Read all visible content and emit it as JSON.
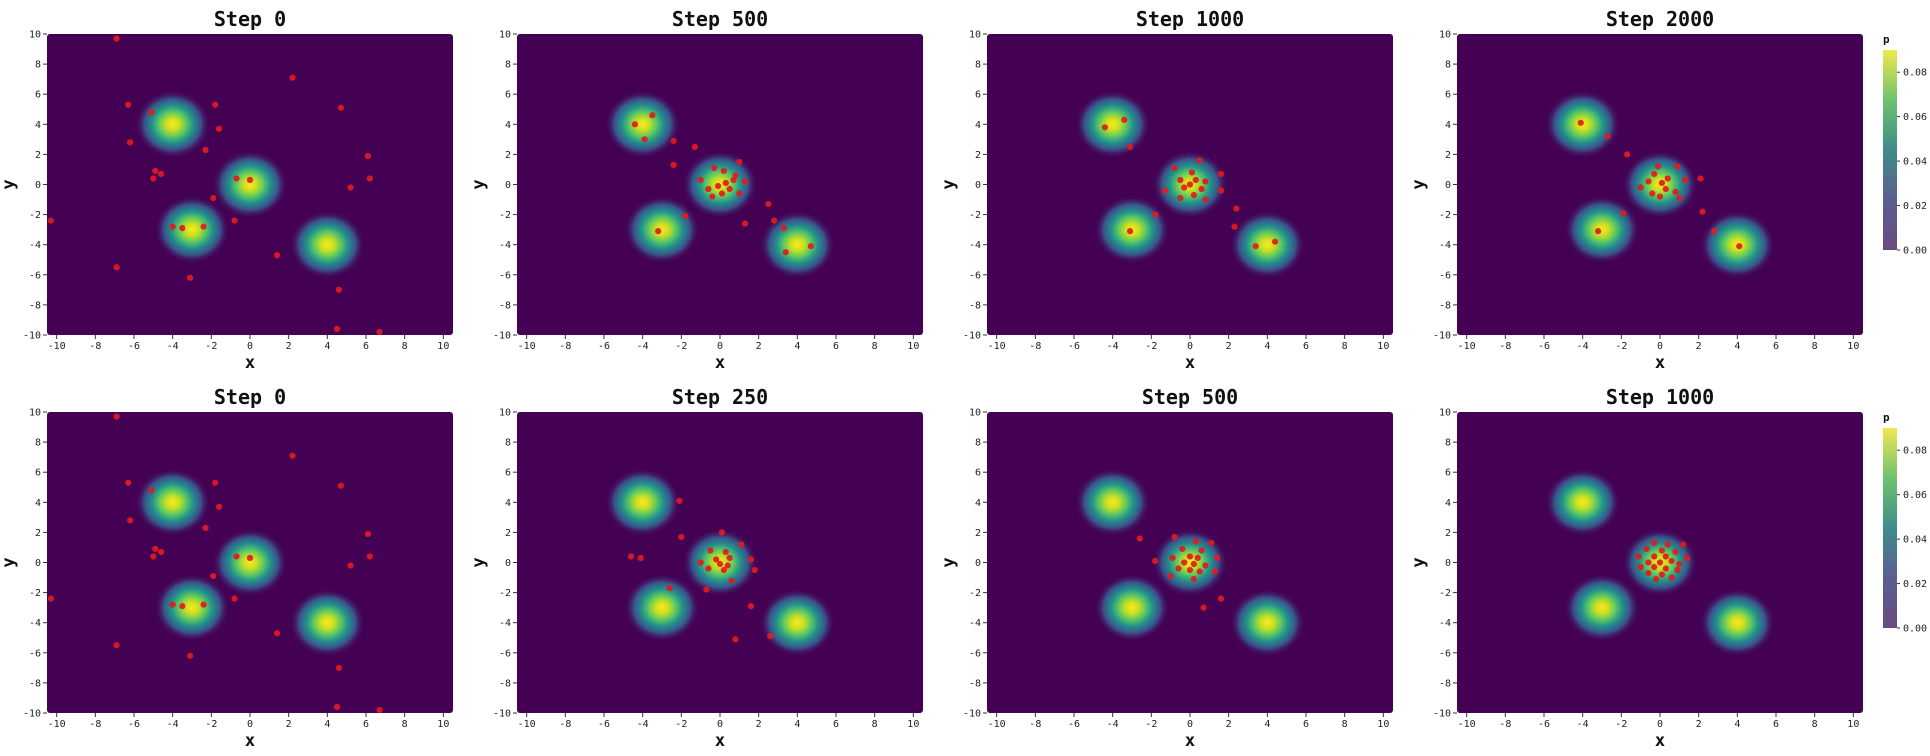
{
  "chart_data": {
    "type": "heatmap",
    "density": {
      "description_free": true,
      "components": [
        {
          "mean": [
            -4,
            4
          ],
          "sigma": 0.75
        },
        {
          "mean": [
            0,
            0
          ],
          "sigma": 0.75
        },
        {
          "mean": [
            -3,
            -3
          ],
          "sigma": 0.75
        },
        {
          "mean": [
            4,
            -4
          ],
          "sigma": 0.75
        }
      ]
    },
    "colorbar": {
      "title": "p",
      "ticks": [
        "0.00",
        "0.02",
        "0.04",
        "0.06",
        "0.08"
      ],
      "range": [
        0,
        0.09
      ]
    },
    "xlim": [
      -10.5,
      10.5
    ],
    "ylim": [
      -10,
      10
    ],
    "xticks": [
      "-10",
      "-8",
      "-6",
      "-4",
      "-2",
      "0",
      "2",
      "4",
      "6",
      "8",
      "10"
    ],
    "yticks": [
      "10",
      "8",
      "6",
      "4",
      "2",
      "0",
      "-2",
      "-4",
      "-6",
      "-8",
      "-10"
    ],
    "xlabel": "x",
    "ylabel": "y",
    "panels": [
      {
        "title": "Step 0",
        "points": [
          [
            -6.9,
            9.7
          ],
          [
            2.2,
            7.1
          ],
          [
            -6.3,
            5.3
          ],
          [
            -1.8,
            5.3
          ],
          [
            -5.1,
            4.8
          ],
          [
            4.7,
            5.1
          ],
          [
            -1.6,
            3.7
          ],
          [
            -6.2,
            2.8
          ],
          [
            -2.3,
            2.3
          ],
          [
            6.1,
            1.9
          ],
          [
            -4.9,
            0.9
          ],
          [
            -4.6,
            0.7
          ],
          [
            -5.0,
            0.4
          ],
          [
            -0.7,
            0.4
          ],
          [
            0.0,
            0.3
          ],
          [
            6.2,
            0.4
          ],
          [
            5.2,
            -0.2
          ],
          [
            -1.9,
            -0.9
          ],
          [
            -10.3,
            -2.4
          ],
          [
            -10.7,
            -2.5
          ],
          [
            -0.8,
            -2.4
          ],
          [
            -4.0,
            -2.8
          ],
          [
            -3.5,
            -2.9
          ],
          [
            -2.4,
            -2.8
          ],
          [
            1.4,
            -4.7
          ],
          [
            -6.9,
            -5.5
          ],
          [
            -3.1,
            -6.2
          ],
          [
            4.6,
            -7.0
          ],
          [
            4.5,
            -9.6
          ],
          [
            6.7,
            -9.8
          ]
        ]
      },
      {
        "title": "Step 500",
        "points": [
          [
            -3.5,
            4.6
          ],
          [
            -4.4,
            4.0
          ],
          [
            -3.9,
            3.0
          ],
          [
            -2.4,
            2.9
          ],
          [
            -1.3,
            2.5
          ],
          [
            -2.4,
            1.3
          ],
          [
            -0.3,
            1.1
          ],
          [
            1.0,
            1.5
          ],
          [
            0.2,
            0.9
          ],
          [
            0.8,
            0.6
          ],
          [
            -1.0,
            0.3
          ],
          [
            0.3,
            0.1
          ],
          [
            -0.1,
            -0.1
          ],
          [
            0.7,
            0.3
          ],
          [
            1.3,
            0.2
          ],
          [
            0.5,
            -0.3
          ],
          [
            -0.6,
            -0.3
          ],
          [
            0.1,
            -0.6
          ],
          [
            -0.4,
            -0.8
          ],
          [
            1.0,
            -0.6
          ],
          [
            2.5,
            -1.3
          ],
          [
            -1.8,
            -2.1
          ],
          [
            2.8,
            -2.4
          ],
          [
            1.3,
            -2.6
          ],
          [
            -3.2,
            -3.1
          ],
          [
            3.3,
            -2.9
          ],
          [
            3.4,
            -4.5
          ],
          [
            4.7,
            -4.1
          ]
        ]
      },
      {
        "title": "Step 1000",
        "points": [
          [
            -3.4,
            4.3
          ],
          [
            -4.4,
            3.8
          ],
          [
            -3.1,
            2.5
          ],
          [
            0.5,
            1.6
          ],
          [
            -0.8,
            1.1
          ],
          [
            0.1,
            0.8
          ],
          [
            1.6,
            0.7
          ],
          [
            -0.5,
            0.3
          ],
          [
            0.3,
            0.3
          ],
          [
            0.8,
            0.2
          ],
          [
            0.0,
            0.0
          ],
          [
            -0.3,
            -0.2
          ],
          [
            0.6,
            -0.3
          ],
          [
            -1.3,
            -0.4
          ],
          [
            1.6,
            -0.4
          ],
          [
            0.2,
            -0.7
          ],
          [
            -0.5,
            -0.9
          ],
          [
            0.8,
            -1.0
          ],
          [
            2.4,
            -1.6
          ],
          [
            -1.8,
            -2.0
          ],
          [
            -3.1,
            -3.1
          ],
          [
            2.3,
            -2.8
          ],
          [
            4.4,
            -3.8
          ],
          [
            3.4,
            -4.1
          ]
        ]
      },
      {
        "title": "Step 2000",
        "points": [
          [
            -4.1,
            4.1
          ],
          [
            -2.7,
            3.2
          ],
          [
            -1.7,
            2.0
          ],
          [
            -0.1,
            1.2
          ],
          [
            0.9,
            1.2
          ],
          [
            -0.3,
            0.7
          ],
          [
            0.4,
            0.4
          ],
          [
            -0.6,
            0.2
          ],
          [
            0.1,
            0.1
          ],
          [
            1.3,
            0.3
          ],
          [
            2.1,
            0.4
          ],
          [
            -1.0,
            -0.2
          ],
          [
            0.3,
            -0.3
          ],
          [
            0.8,
            -0.5
          ],
          [
            -0.4,
            -0.6
          ],
          [
            0.0,
            -0.8
          ],
          [
            1.0,
            -0.9
          ],
          [
            -1.9,
            -1.9
          ],
          [
            2.2,
            -1.8
          ],
          [
            -3.2,
            -3.1
          ],
          [
            2.8,
            -3.1
          ],
          [
            4.1,
            -4.1
          ]
        ]
      },
      {
        "title": "Step 0",
        "points": [
          [
            -6.9,
            9.7
          ],
          [
            2.2,
            7.1
          ],
          [
            -6.3,
            5.3
          ],
          [
            -1.8,
            5.3
          ],
          [
            -5.1,
            4.8
          ],
          [
            4.7,
            5.1
          ],
          [
            -1.6,
            3.7
          ],
          [
            -6.2,
            2.8
          ],
          [
            -2.3,
            2.3
          ],
          [
            6.1,
            1.9
          ],
          [
            -4.9,
            0.9
          ],
          [
            -4.6,
            0.7
          ],
          [
            -5.0,
            0.4
          ],
          [
            -0.7,
            0.4
          ],
          [
            0.0,
            0.3
          ],
          [
            6.2,
            0.4
          ],
          [
            5.2,
            -0.2
          ],
          [
            -1.9,
            -0.9
          ],
          [
            -10.3,
            -2.4
          ],
          [
            -10.7,
            -2.5
          ],
          [
            -0.8,
            -2.4
          ],
          [
            -4.0,
            -2.8
          ],
          [
            -3.5,
            -2.9
          ],
          [
            -2.4,
            -2.8
          ],
          [
            1.4,
            -4.7
          ],
          [
            -6.9,
            -5.5
          ],
          [
            -3.1,
            -6.2
          ],
          [
            4.6,
            -7.0
          ],
          [
            4.5,
            -9.6
          ],
          [
            6.7,
            -9.8
          ]
        ]
      },
      {
        "title": "Step 250",
        "points": [
          [
            -2.1,
            4.1
          ],
          [
            -2.0,
            1.7
          ],
          [
            0.1,
            2.0
          ],
          [
            1.1,
            1.2
          ],
          [
            -0.5,
            0.8
          ],
          [
            0.3,
            0.7
          ],
          [
            -0.2,
            0.2
          ],
          [
            0.5,
            0.3
          ],
          [
            1.6,
            0.2
          ],
          [
            -1.0,
            0.0
          ],
          [
            0.0,
            -0.1
          ],
          [
            0.4,
            -0.2
          ],
          [
            1.8,
            -0.5
          ],
          [
            -0.6,
            -0.4
          ],
          [
            0.2,
            -0.5
          ],
          [
            -4.6,
            0.4
          ],
          [
            -4.1,
            0.3
          ],
          [
            -2.6,
            -1.7
          ],
          [
            -0.7,
            -1.8
          ],
          [
            0.6,
            -1.2
          ],
          [
            1.6,
            -2.9
          ],
          [
            0.8,
            -5.1
          ],
          [
            2.6,
            -4.9
          ]
        ]
      },
      {
        "title": "Step 500",
        "points": [
          [
            -2.6,
            1.6
          ],
          [
            -0.8,
            1.7
          ],
          [
            0.3,
            1.4
          ],
          [
            1.1,
            1.3
          ],
          [
            -0.4,
            0.9
          ],
          [
            0.6,
            0.8
          ],
          [
            -1.8,
            0.1
          ],
          [
            -0.9,
            0.3
          ],
          [
            0.0,
            0.4
          ],
          [
            0.4,
            0.3
          ],
          [
            1.4,
            0.3
          ],
          [
            -0.3,
            0.0
          ],
          [
            0.2,
            -0.1
          ],
          [
            0.8,
            -0.2
          ],
          [
            -0.6,
            -0.4
          ],
          [
            0.0,
            -0.5
          ],
          [
            0.5,
            -0.6
          ],
          [
            1.3,
            -0.6
          ],
          [
            -1.0,
            -0.9
          ],
          [
            0.2,
            -1.1
          ],
          [
            1.6,
            -2.4
          ],
          [
            0.7,
            -3.0
          ]
        ]
      },
      {
        "title": "Step 1000",
        "points": [
          [
            -0.3,
            1.3
          ],
          [
            0.4,
            1.2
          ],
          [
            1.2,
            1.2
          ],
          [
            -0.7,
            0.9
          ],
          [
            0.1,
            0.8
          ],
          [
            0.8,
            0.7
          ],
          [
            -1.1,
            0.4
          ],
          [
            -0.3,
            0.4
          ],
          [
            0.3,
            0.4
          ],
          [
            1.4,
            0.3
          ],
          [
            -0.6,
            0.0
          ],
          [
            0.0,
            0.0
          ],
          [
            0.6,
            0.1
          ],
          [
            1.0,
            -0.1
          ],
          [
            -1.0,
            -0.3
          ],
          [
            -0.3,
            -0.3
          ],
          [
            0.3,
            -0.4
          ],
          [
            0.9,
            -0.5
          ],
          [
            -0.6,
            -0.7
          ],
          [
            0.1,
            -0.8
          ],
          [
            -0.2,
            -1.1
          ],
          [
            0.6,
            -1.0
          ]
        ]
      }
    ]
  }
}
